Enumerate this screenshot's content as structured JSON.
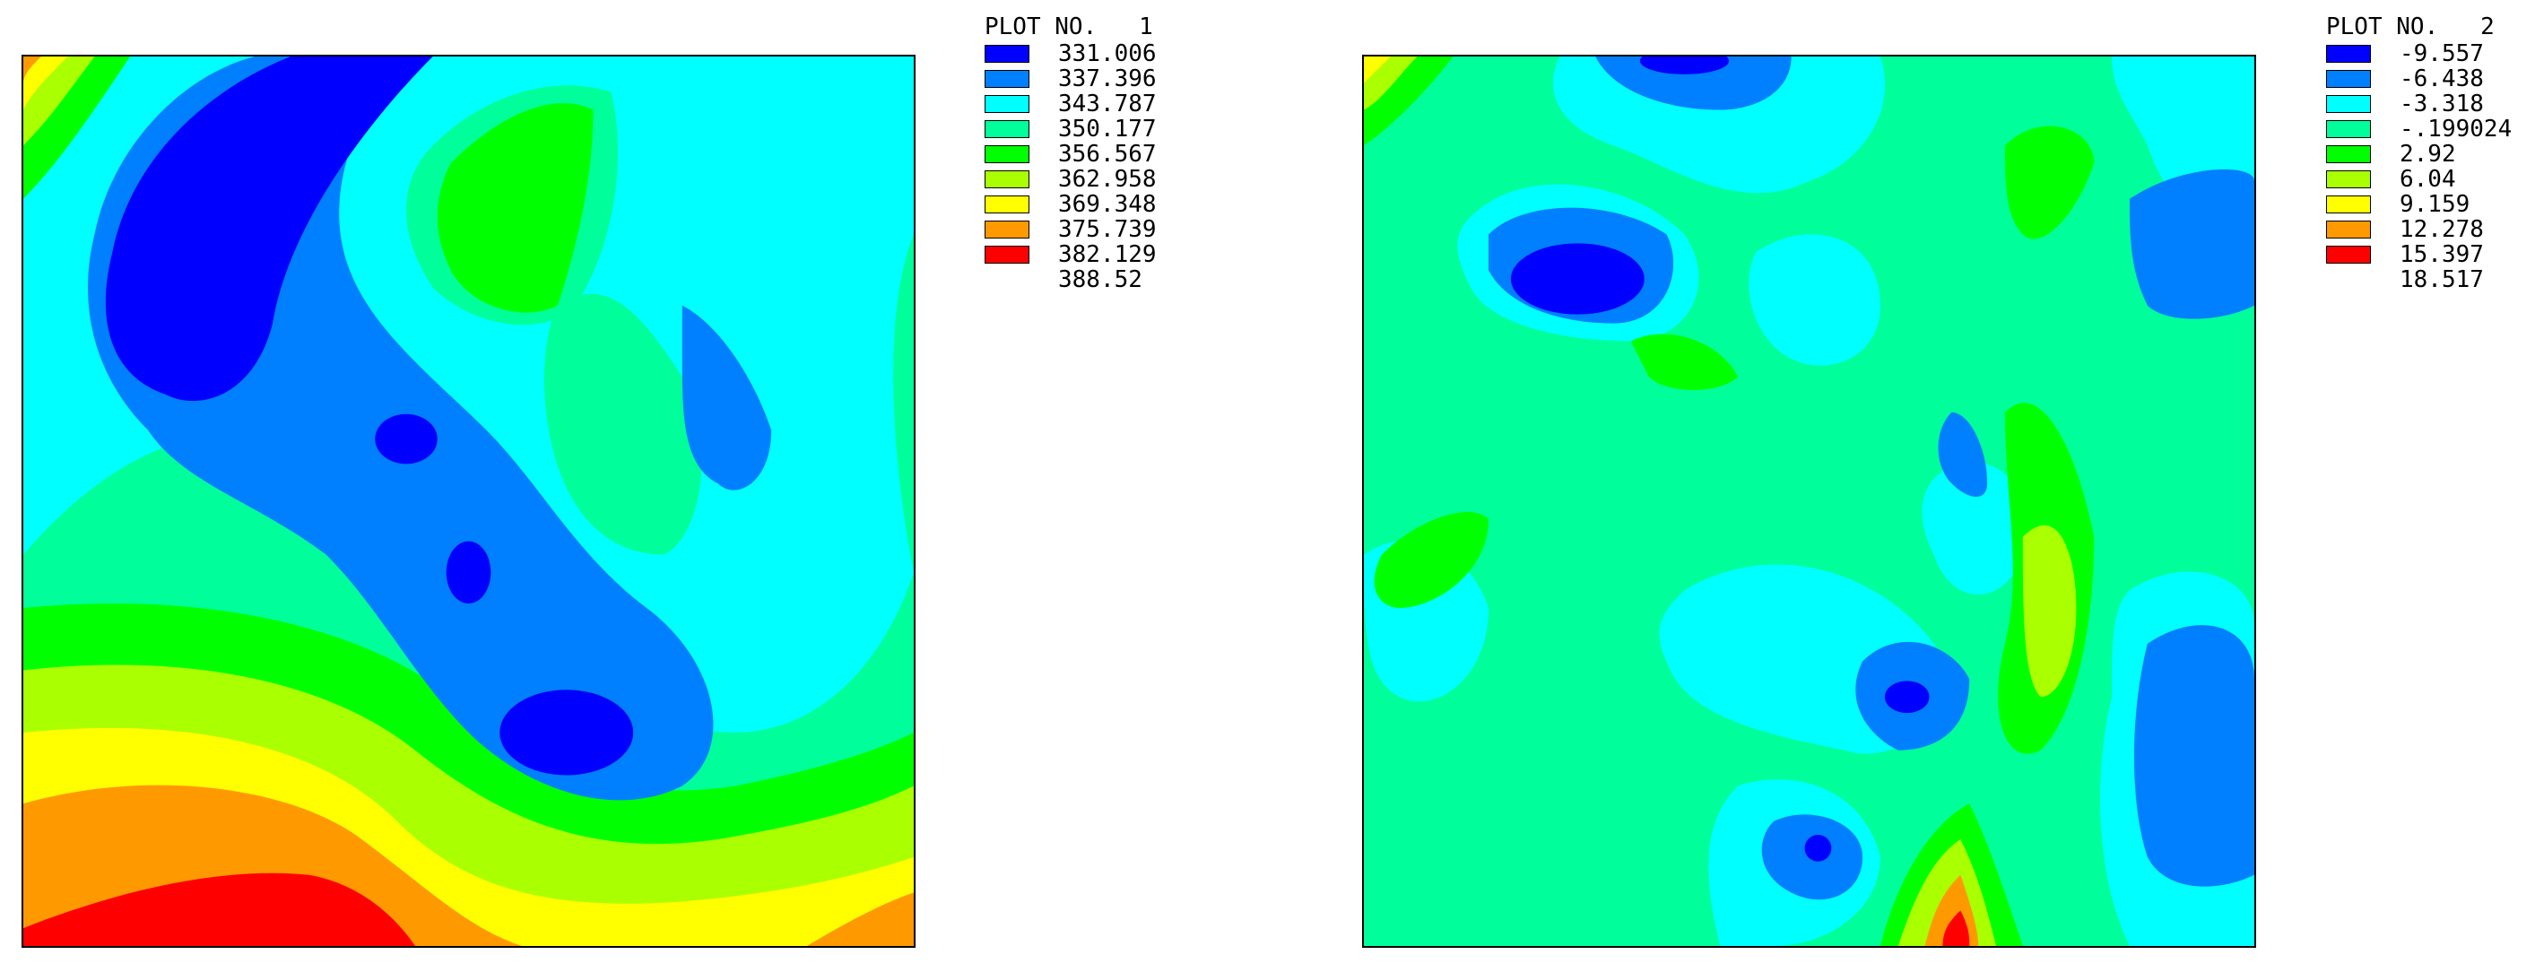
{
  "chart_data": [
    {
      "type": "heatmap",
      "title": "PLOT NO.   1",
      "legend_position": "right",
      "levels": [
        "331.006",
        "337.396",
        "343.787",
        "350.177",
        "356.567",
        "362.958",
        "369.348",
        "375.739",
        "382.129",
        "388.52"
      ],
      "colors": [
        "#0000ff",
        "#0080ff",
        "#00ffff",
        "#00ff9a",
        "#00ff00",
        "#aaff00",
        "#ffff00",
        "#ff9900",
        "#ff0000"
      ]
    },
    {
      "type": "heatmap",
      "title": "PLOT NO.   2",
      "legend_position": "right",
      "levels": [
        "-9.557",
        "-6.438",
        "-3.318",
        "-.199024",
        "2.92",
        "6.04",
        "9.159",
        "12.278",
        "15.397",
        "18.517"
      ],
      "colors": [
        "#0000ff",
        "#0080ff",
        "#00ffff",
        "#00ff9a",
        "#00ff00",
        "#aaff00",
        "#ffff00",
        "#ff9900",
        "#ff0000"
      ]
    }
  ]
}
